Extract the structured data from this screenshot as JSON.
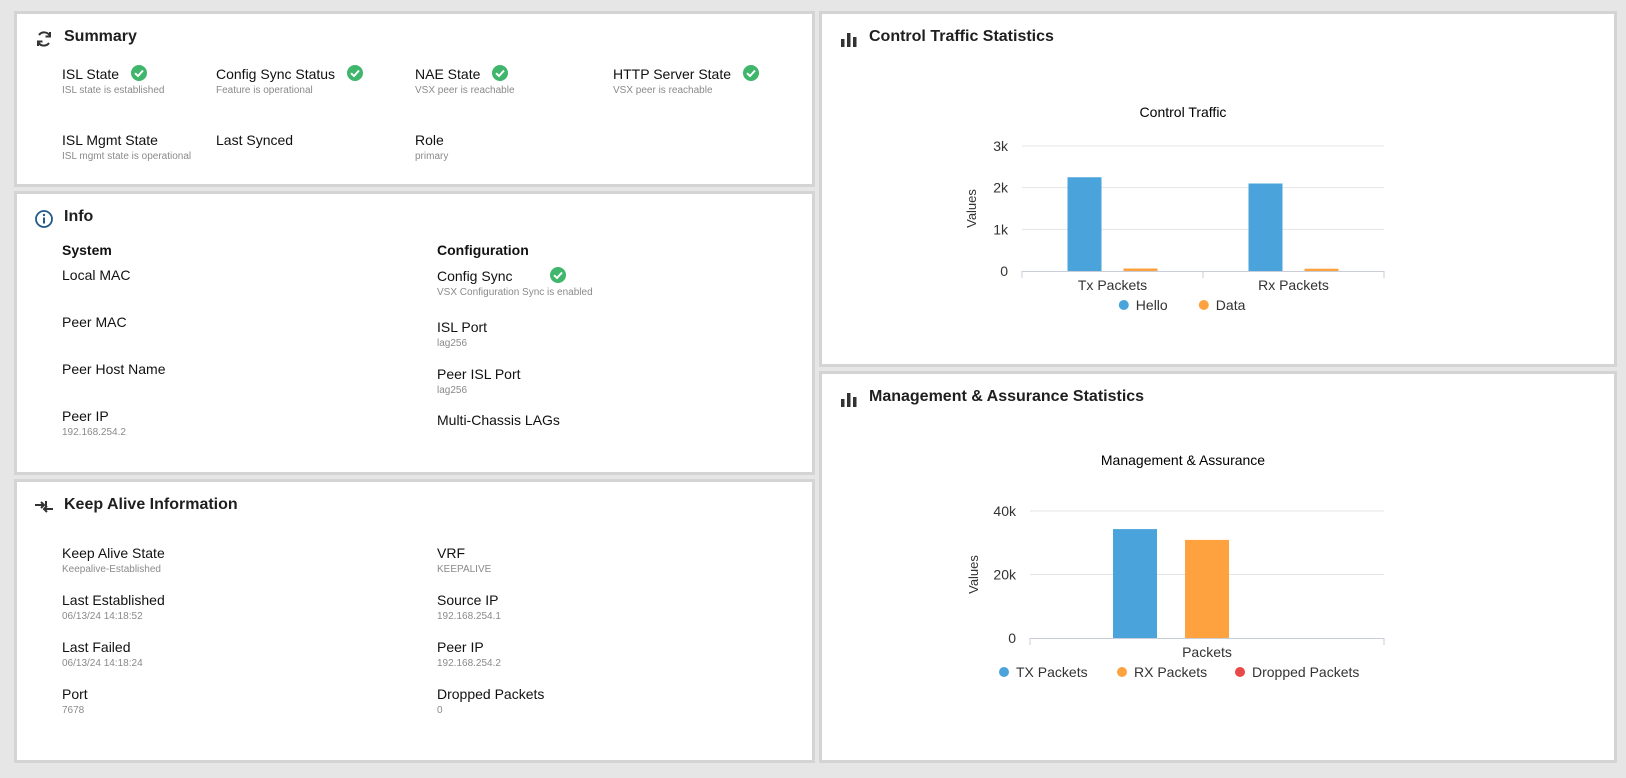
{
  "summary": {
    "title": "Summary",
    "items": [
      {
        "label": "ISL State",
        "sub": "ISL state is established",
        "check": true
      },
      {
        "label": "Config Sync Status",
        "sub": "Feature is operational",
        "check": true
      },
      {
        "label": "NAE State",
        "sub": "VSX peer is reachable",
        "check": true
      },
      {
        "label": "HTTP Server State",
        "sub": "VSX peer is reachable",
        "check": true
      },
      {
        "label": "ISL Mgmt State",
        "sub": "ISL mgmt state is operational",
        "check": false
      },
      {
        "label": "Last Synced",
        "sub": "",
        "check": false
      },
      {
        "label": "Role",
        "sub": "primary",
        "check": false
      }
    ]
  },
  "info": {
    "title": "Info",
    "system_heading": "System",
    "config_heading": "Configuration",
    "system": [
      {
        "label": "Local MAC",
        "sub": ""
      },
      {
        "label": "Peer MAC",
        "sub": ""
      },
      {
        "label": "Peer Host Name",
        "sub": ""
      },
      {
        "label": "Peer IP",
        "sub": "192.168.254.2"
      }
    ],
    "config": [
      {
        "label": "Config Sync",
        "sub": "VSX Configuration Sync is enabled",
        "check": true
      },
      {
        "label": "ISL Port",
        "sub": "lag256"
      },
      {
        "label": "Peer ISL Port",
        "sub": "lag256"
      },
      {
        "label": "Multi-Chassis LAGs",
        "sub": ""
      }
    ]
  },
  "keepalive": {
    "title": "Keep Alive Information",
    "left": [
      {
        "label": "Keep Alive State",
        "sub": "Keepalive-Established"
      },
      {
        "label": "Last Established",
        "sub": "06/13/24 14:18:52"
      },
      {
        "label": "Last Failed",
        "sub": "06/13/24 14:18:24"
      },
      {
        "label": "Port",
        "sub": "7678"
      }
    ],
    "right": [
      {
        "label": "VRF",
        "sub": "KEEPALIVE"
      },
      {
        "label": "Source IP",
        "sub": "192.168.254.1"
      },
      {
        "label": "Peer IP",
        "sub": "192.168.254.2"
      },
      {
        "label": "Dropped Packets",
        "sub": "0"
      }
    ]
  },
  "control": {
    "panel_title": "Control Traffic Statistics"
  },
  "management": {
    "panel_title": "Management & Assurance Statistics"
  },
  "colors": {
    "blue": "#4aa3da",
    "orange": "#fda23e",
    "red": "#e84848",
    "check": "#3fb66b"
  },
  "chart_data": [
    {
      "type": "bar",
      "title": "Control Traffic",
      "ylabel": "Values",
      "categories": [
        "Tx Packets",
        "Rx Packets"
      ],
      "series": [
        {
          "name": "Hello",
          "values": [
            2250,
            2100
          ],
          "color": "#4aa3da"
        },
        {
          "name": "Data",
          "values": [
            60,
            55
          ],
          "color": "#fda23e"
        }
      ],
      "ylim": [
        0,
        3000
      ],
      "yticks": [
        "0",
        "1k",
        "2k",
        "3k"
      ],
      "legend": "bottom",
      "grid": true
    },
    {
      "type": "bar",
      "title": "Management & Assurance",
      "ylabel": "Values",
      "categories": [
        "Packets"
      ],
      "series": [
        {
          "name": "TX Packets",
          "values": [
            34300
          ],
          "color": "#4aa3da"
        },
        {
          "name": "RX Packets",
          "values": [
            30900
          ],
          "color": "#fda23e"
        },
        {
          "name": "Dropped Packets",
          "values": [
            0
          ],
          "color": "#e84848"
        }
      ],
      "ylim": [
        0,
        40000
      ],
      "yticks": [
        "0",
        "20k",
        "40k"
      ],
      "legend": "bottom",
      "grid": true
    }
  ]
}
